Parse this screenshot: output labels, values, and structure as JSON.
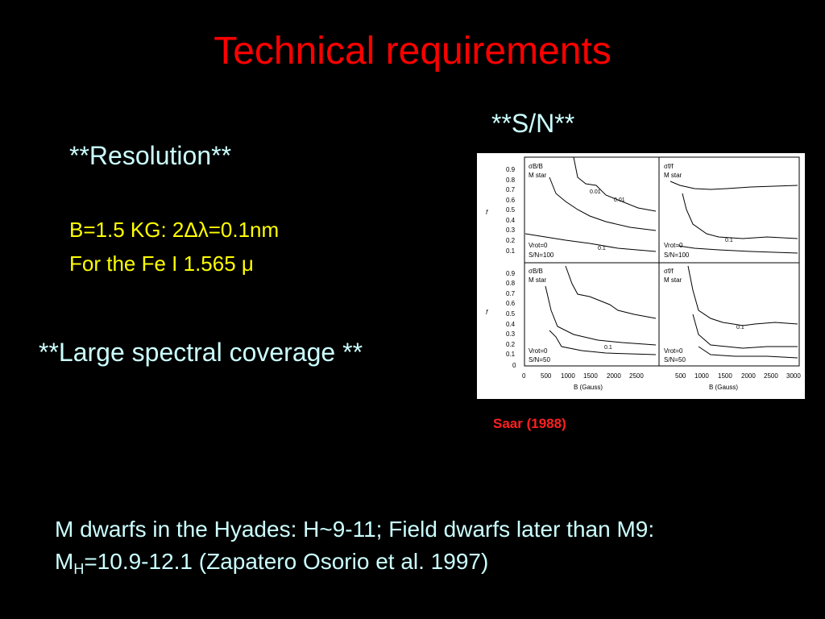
{
  "slide": {
    "title": "Technical requirements",
    "sn_heading": "**S/N**",
    "resolution_heading": "**Resolution**",
    "resolution_line1": "B=1.5 KG: 2Δλ=0.1nm",
    "resolution_line2": "For the Fe I 1.565 μ",
    "coverage_heading": "**Large spectral coverage **",
    "credit": "Saar (1988)",
    "bottom_line1": "M dwarfs in the Hyades: H~9-11; Field dwarfs later than M9:",
    "bottom_m": "M",
    "bottom_sub": "H",
    "bottom_rest": "=10.9-12.1 (Zapatero Osorio et al. 1997)"
  },
  "figure": {
    "y_ticks": [
      "0.9",
      "0.8",
      "0.7",
      "0.6",
      "0.5",
      "0.4",
      "0.3",
      "0.2",
      "0.1",
      "0"
    ],
    "y_axis_label": "f",
    "x_ticks_left": [
      "0",
      "500",
      "1000",
      "1500",
      "2000",
      "2500"
    ],
    "x_ticks_right": [
      "500",
      "1000",
      "1500",
      "2000",
      "2500",
      "3000"
    ],
    "x_label": "B (Gauss)",
    "panels": [
      {
        "line1": "σB/B",
        "line2": "M star",
        "line3": "Vrot=0",
        "line4": "S/N=100",
        "contours": [
          "0.01",
          "0.01",
          "0.1"
        ]
      },
      {
        "line1": "σf/f",
        "line2": "M star",
        "line3": "Vrot=0",
        "line4": "S/N=100",
        "contours": [
          "0.1"
        ]
      },
      {
        "line1": "σB/B",
        "line2": "M star",
        "line3": "Vrot=0",
        "line4": "S/N=50",
        "contours": [
          "0.1"
        ]
      },
      {
        "line1": "σf/f",
        "line2": "M star",
        "line3": "Vrot=0",
        "line4": "S/N=50",
        "contours": [
          "0.1"
        ]
      }
    ]
  }
}
